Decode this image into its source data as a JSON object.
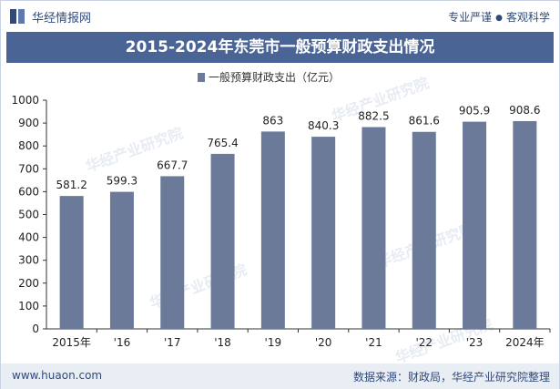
{
  "header": {
    "brand": "华经情报网",
    "slogan_left": "专业严谨",
    "slogan_right": "客观科学"
  },
  "title": "2015-2024年东莞市一般预算财政支出情况",
  "footer": {
    "site": "www.huaon.com",
    "source": "数据来源：财政局，华经产业研究院整理"
  },
  "watermark": "华经产业研究院",
  "colors": {
    "bar": "#6b7a99",
    "title_bg": "#4a6496",
    "brand": "#2f4a7a"
  },
  "chart_data": {
    "type": "bar",
    "categories": [
      "2015年",
      "'16",
      "'17",
      "'18",
      "'19",
      "'20",
      "'21",
      "'22",
      "'23",
      "2024年"
    ],
    "series": [
      {
        "name": "一般预算财政支出（亿元）",
        "values": [
          581.2,
          599.3,
          667.7,
          765.4,
          863,
          840.3,
          882.5,
          861.6,
          905.9,
          908.6
        ]
      }
    ],
    "value_labels": [
      "581.2",
      "599.3",
      "667.7",
      "765.4",
      "863",
      "840.3",
      "882.5",
      "861.6",
      "905.9",
      "908.6"
    ],
    "yticks": [
      0,
      100,
      200,
      300,
      400,
      500,
      600,
      700,
      800,
      900,
      1000
    ],
    "ylim": [
      0,
      1000
    ],
    "legend_position": "top-center",
    "grid": false
  }
}
